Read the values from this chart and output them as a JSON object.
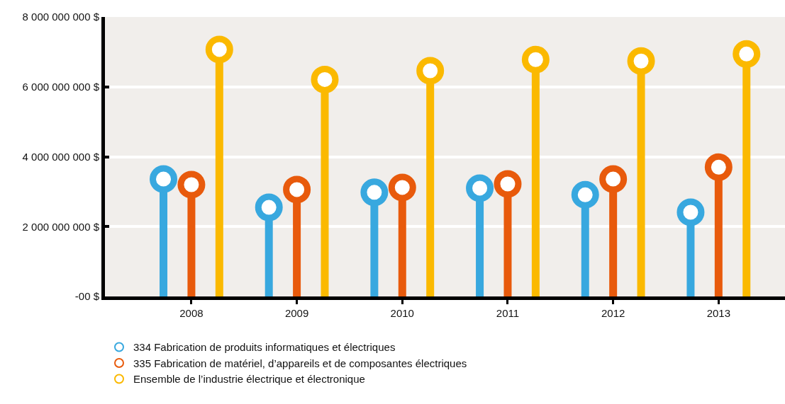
{
  "chart_data": {
    "type": "lollipop",
    "categories": [
      "2008",
      "2009",
      "2010",
      "2011",
      "2012",
      "2013"
    ],
    "series": [
      {
        "name": "334 Fabrication de produits informatiques et électriques",
        "color": "#38a8df",
        "values": [
          3360000000,
          2550000000,
          2980000000,
          3100000000,
          2910000000,
          2410000000
        ]
      },
      {
        "name": "335 Fabrication de matériel, d’appareils et de composantes électriques",
        "color": "#e85a0c",
        "values": [
          3200000000,
          3060000000,
          3120000000,
          3220000000,
          3360000000,
          3700000000
        ]
      },
      {
        "name": "Ensemble de l’industrie électrique et électronique",
        "color": "#fbb900",
        "values": [
          7070000000,
          6210000000,
          6460000000,
          6780000000,
          6740000000,
          6940000000
        ]
      }
    ],
    "ylim": [
      0,
      8000000000
    ],
    "yticks": [
      {
        "value": 0,
        "label": "-00 $"
      },
      {
        "value": 2000000000,
        "label": "2 000 000 000 $"
      },
      {
        "value": 4000000000,
        "label": "4 000 000 000 $"
      },
      {
        "value": 6000000000,
        "label": "6 000 000 000 $"
      },
      {
        "value": 8000000000,
        "label": "8 000 000 000 $"
      }
    ],
    "grid": "y",
    "legend": "bottom left",
    "marker": "circle"
  }
}
